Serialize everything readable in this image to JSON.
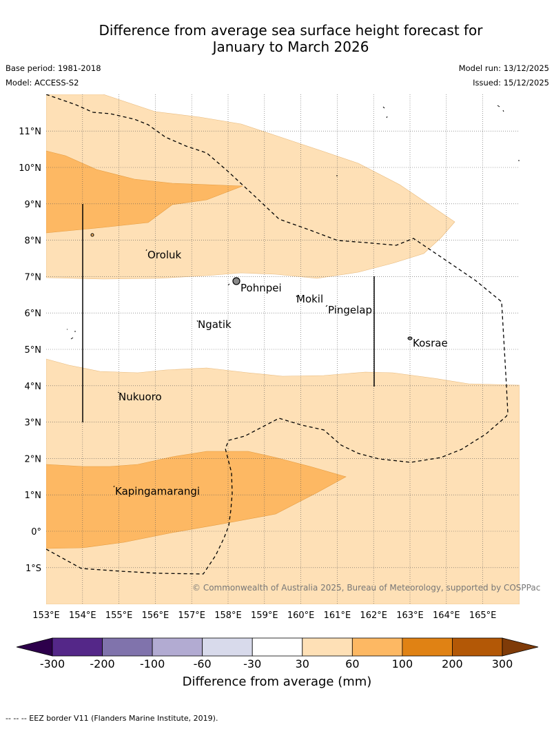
{
  "title": {
    "line1": "Difference from average sea surface height forecast for",
    "line2": "January to March 2026"
  },
  "meta": {
    "base_period": "Base period: 1981-2018",
    "model": "Model: ACCESS-S2",
    "model_run": "Model run: 13/12/2025",
    "issued": "Issued: 15/12/2025"
  },
  "map": {
    "lat_labels": [
      "11°N",
      "10°N",
      "9°N",
      "8°N",
      "7°N",
      "6°N",
      "5°N",
      "4°N",
      "3°N",
      "2°N",
      "1°N",
      "0°",
      "1°S"
    ],
    "lon_labels": [
      "153°E",
      "154°E",
      "155°E",
      "156°E",
      "157°E",
      "158°E",
      "159°E",
      "160°E",
      "161°E",
      "162°E",
      "163°E",
      "164°E",
      "165°E"
    ],
    "places": {
      "oroluk": "Oroluk",
      "pohnpei": "Pohnpei",
      "mokil": "Mokil",
      "pingelap": "Pingelap",
      "ngatik": "Ngatik",
      "kosrae": "Kosrae",
      "nukuoro": "Nukuoro",
      "kapingamarangi": "Kapingamarangi"
    },
    "copyright": "© Commonwealth of Australia 2025, Bureau of Meteorology, supported by COSPPac"
  },
  "legend": {
    "ticks": [
      "-300",
      "-200",
      "-100",
      "-60",
      "-30",
      "30",
      "60",
      "100",
      "200",
      "300"
    ],
    "colors": [
      "#2d004b",
      "#542788",
      "#8073ac",
      "#b2abd2",
      "#d8daeb",
      "#ffffff",
      "#fee0b6",
      "#fdb863",
      "#e08214",
      "#b35806",
      "#7f3b08"
    ],
    "title": "Difference from average (mm)"
  },
  "footer": {
    "eez_note": "--  --  -- EEZ border V11 (Flanders Marine Institute, 2019)."
  }
}
